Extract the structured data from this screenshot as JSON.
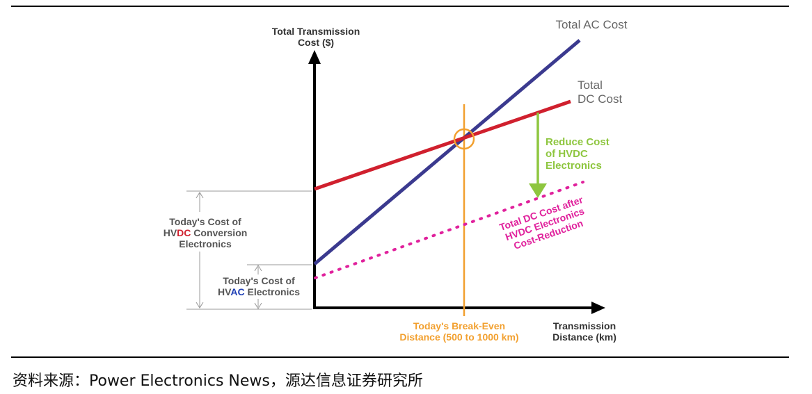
{
  "axes": {
    "y_label": [
      "Total Transmission",
      "Cost ($)"
    ],
    "x_label": [
      "Transmission",
      "Distance (km)"
    ]
  },
  "curves": {
    "total_ac": {
      "label": "Total AC Cost"
    },
    "total_dc": {
      "label": [
        "Total",
        "DC Cost"
      ]
    },
    "reduced_dc": {
      "label": [
        "Total DC Cost after",
        "HVDC Electronics",
        "Cost-Reduction"
      ]
    }
  },
  "annotations": {
    "reduce_cost": [
      "Reduce Cost",
      "of HVDC",
      "Electronics"
    ],
    "break_even": [
      "Today's Break-Even",
      "Distance (500 to 1000 km)"
    ],
    "dc_conversion": {
      "line1": "Today's Cost of",
      "prefix": "HV",
      "highlight": "DC",
      "suffix": " Conversion",
      "line3": "Electronics"
    },
    "ac_electronics": {
      "line1": "Today's Cost of",
      "prefix": "HV",
      "highlight": "AC",
      "suffix": " Electronics"
    }
  },
  "source": "资料来源：Power Electronics News，源达信息证券研究所",
  "colors": {
    "ac_line": "#3b3a8f",
    "dc_line": "#d0202e",
    "reduced_dc_line": "#e0219c",
    "reduce_arrow": "#8ec63f",
    "break_even": "#f2a02f",
    "dc_highlight": "#d0202e",
    "ac_highlight": "#1f3fb5"
  }
}
